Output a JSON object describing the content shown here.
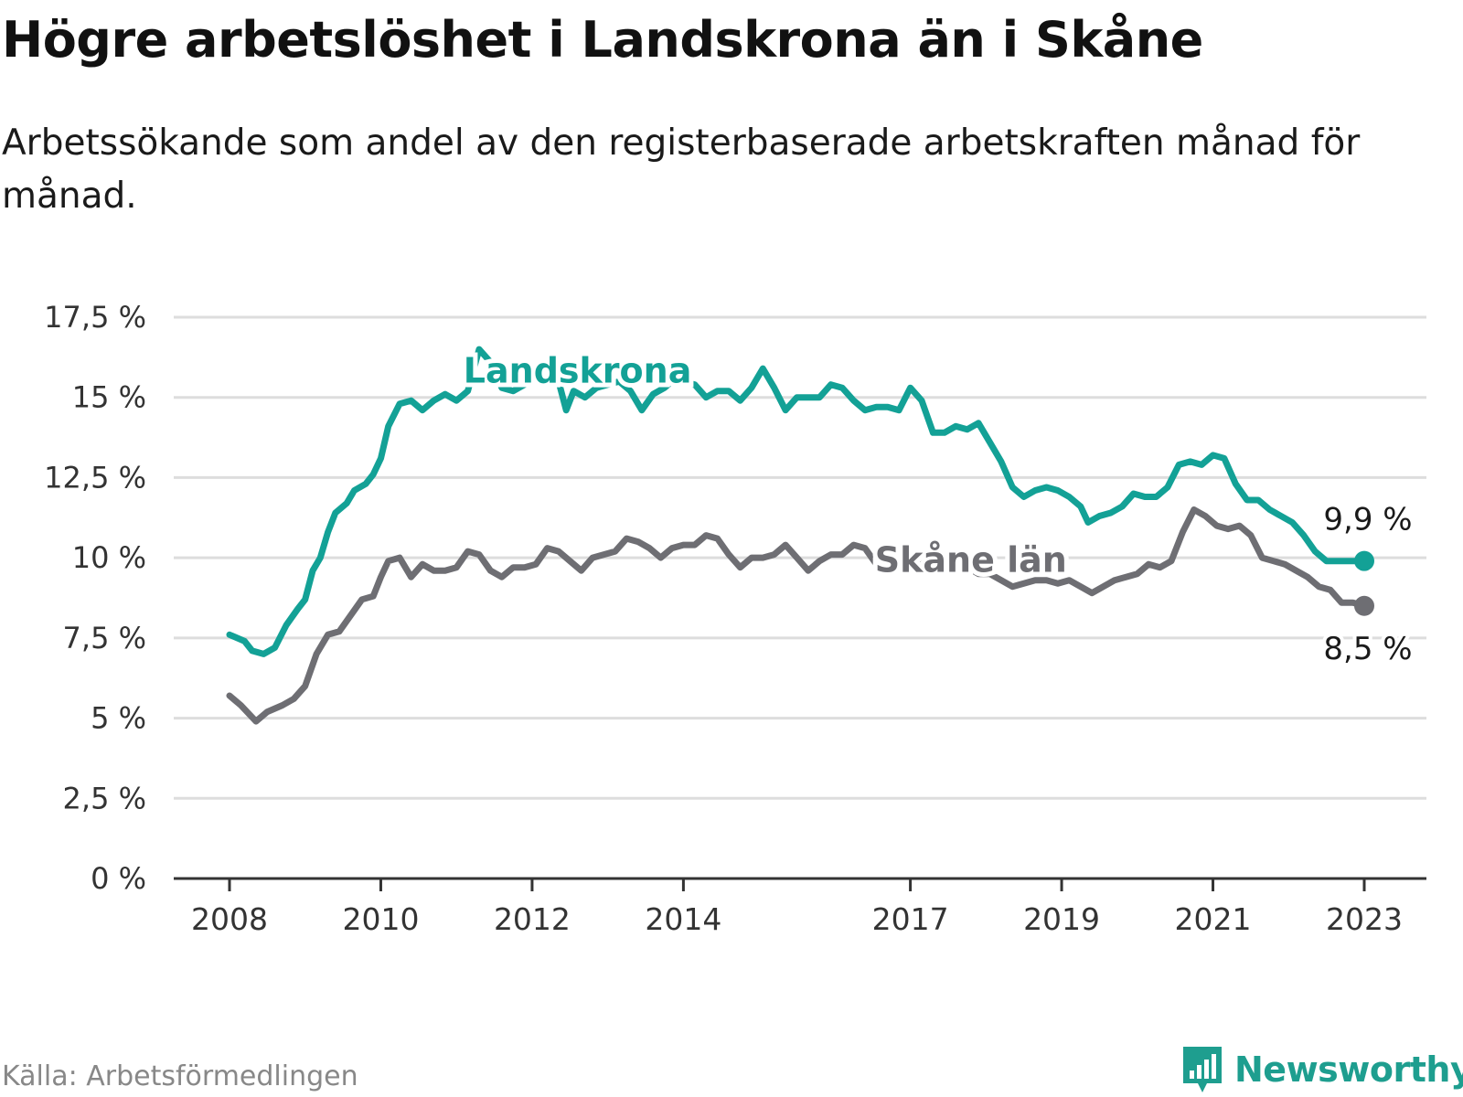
{
  "title": "Högre arbetslöshet i Landskrona än i Skåne",
  "subtitle": "Arbetssökande som andel av den registerbaserade arbetskraften månad för månad.",
  "source": "Källa: Arbetsförmedlingen",
  "brand": "Newsworthy",
  "colors": {
    "landskrona": "#13a196",
    "skane": "#6e6e73",
    "grid": "#dddddd",
    "axis": "#333333",
    "brand": "#1e9e8f"
  },
  "chart_data": {
    "type": "line",
    "title": "Högre arbetslöshet i Landskrona än i Skåne",
    "xlabel": "",
    "ylabel": "",
    "ylim": [
      0,
      17.5
    ],
    "xlim": [
      2008.0,
      2023.0
    ],
    "yticks": [
      0,
      2.5,
      5,
      7.5,
      10,
      12.5,
      15,
      17.5
    ],
    "ytick_labels": [
      "0 %",
      "2,5 %",
      "5 %",
      "7,5 %",
      "10 %",
      "12,5 %",
      "15 %",
      "17,5 %"
    ],
    "xticks": [
      2008.0,
      2010.0,
      2012.0,
      2014.0,
      2017.0,
      2019.0,
      2021.0,
      2023.0
    ],
    "xtick_labels": [
      "2008",
      "2010",
      "2012",
      "2014",
      "2017",
      "2019",
      "2021",
      "2023"
    ],
    "grid": true,
    "series": [
      {
        "name": "Landskrona",
        "label": "Landskrona",
        "end_label": "9,9 %",
        "end_value": 9.9,
        "points": [
          [
            2008.0,
            7.6
          ],
          [
            2008.2,
            7.4
          ],
          [
            2008.3,
            7.1
          ],
          [
            2008.45,
            7.0
          ],
          [
            2008.6,
            7.2
          ],
          [
            2008.75,
            7.9
          ],
          [
            2008.9,
            8.4
          ],
          [
            2009.0,
            8.7
          ],
          [
            2009.1,
            9.6
          ],
          [
            2009.2,
            10.0
          ],
          [
            2009.3,
            10.8
          ],
          [
            2009.4,
            11.4
          ],
          [
            2009.55,
            11.7
          ],
          [
            2009.65,
            12.1
          ],
          [
            2009.8,
            12.3
          ],
          [
            2009.9,
            12.6
          ],
          [
            2010.0,
            13.1
          ],
          [
            2010.1,
            14.1
          ],
          [
            2010.25,
            14.8
          ],
          [
            2010.4,
            14.9
          ],
          [
            2010.55,
            14.6
          ],
          [
            2010.7,
            14.9
          ],
          [
            2010.85,
            15.1
          ],
          [
            2011.0,
            14.9
          ],
          [
            2011.15,
            15.2
          ],
          [
            2011.3,
            16.5
          ],
          [
            2011.45,
            16.1
          ],
          [
            2011.6,
            15.3
          ],
          [
            2011.75,
            15.2
          ],
          [
            2011.9,
            15.4
          ],
          [
            2012.05,
            15.6
          ],
          [
            2012.2,
            15.8
          ],
          [
            2012.35,
            15.5
          ],
          [
            2012.45,
            14.6
          ],
          [
            2012.55,
            15.2
          ],
          [
            2012.7,
            15.0
          ],
          [
            2012.85,
            15.3
          ],
          [
            2013.0,
            15.4
          ],
          [
            2013.15,
            15.5
          ],
          [
            2013.3,
            15.2
          ],
          [
            2013.45,
            14.6
          ],
          [
            2013.6,
            15.1
          ],
          [
            2013.75,
            15.3
          ],
          [
            2013.9,
            15.6
          ],
          [
            2014.0,
            15.5
          ],
          [
            2014.15,
            15.4
          ],
          [
            2014.3,
            15.0
          ],
          [
            2014.45,
            15.2
          ],
          [
            2014.6,
            15.2
          ],
          [
            2014.75,
            14.9
          ],
          [
            2014.9,
            15.3
          ],
          [
            2015.05,
            15.9
          ],
          [
            2015.2,
            15.3
          ],
          [
            2015.35,
            14.6
          ],
          [
            2015.5,
            15.0
          ],
          [
            2015.65,
            15.0
          ],
          [
            2015.8,
            15.0
          ],
          [
            2015.95,
            15.4
          ],
          [
            2016.1,
            15.3
          ],
          [
            2016.25,
            14.9
          ],
          [
            2016.4,
            14.6
          ],
          [
            2016.55,
            14.7
          ],
          [
            2016.7,
            14.7
          ],
          [
            2016.85,
            14.6
          ],
          [
            2017.0,
            15.3
          ],
          [
            2017.15,
            14.9
          ],
          [
            2017.3,
            13.9
          ],
          [
            2017.45,
            13.9
          ],
          [
            2017.6,
            14.1
          ],
          [
            2017.75,
            14.0
          ],
          [
            2017.9,
            14.2
          ],
          [
            2018.05,
            13.6
          ],
          [
            2018.2,
            13.0
          ],
          [
            2018.35,
            12.2
          ],
          [
            2018.5,
            11.9
          ],
          [
            2018.65,
            12.1
          ],
          [
            2018.8,
            12.2
          ],
          [
            2018.95,
            12.1
          ],
          [
            2019.1,
            11.9
          ],
          [
            2019.25,
            11.6
          ],
          [
            2019.35,
            11.1
          ],
          [
            2019.5,
            11.3
          ],
          [
            2019.65,
            11.4
          ],
          [
            2019.8,
            11.6
          ],
          [
            2019.95,
            12.0
          ],
          [
            2020.1,
            11.9
          ],
          [
            2020.25,
            11.9
          ],
          [
            2020.4,
            12.2
          ],
          [
            2020.55,
            12.9
          ],
          [
            2020.7,
            13.0
          ],
          [
            2020.85,
            12.9
          ],
          [
            2021.0,
            13.2
          ],
          [
            2021.15,
            13.1
          ],
          [
            2021.3,
            12.3
          ],
          [
            2021.45,
            11.8
          ],
          [
            2021.6,
            11.8
          ],
          [
            2021.75,
            11.5
          ],
          [
            2021.9,
            11.3
          ],
          [
            2022.05,
            11.1
          ],
          [
            2022.2,
            10.7
          ],
          [
            2022.35,
            10.2
          ],
          [
            2022.5,
            9.9
          ],
          [
            2022.65,
            9.9
          ],
          [
            2022.8,
            9.9
          ],
          [
            2023.0,
            9.9
          ]
        ]
      },
      {
        "name": "Skåne län",
        "label": "Skåne län",
        "end_label": "8,5 %",
        "end_value": 8.5,
        "points": [
          [
            2008.0,
            5.7
          ],
          [
            2008.15,
            5.4
          ],
          [
            2008.35,
            4.9
          ],
          [
            2008.5,
            5.2
          ],
          [
            2008.7,
            5.4
          ],
          [
            2008.85,
            5.6
          ],
          [
            2009.0,
            6.0
          ],
          [
            2009.15,
            7.0
          ],
          [
            2009.3,
            7.6
          ],
          [
            2009.45,
            7.7
          ],
          [
            2009.6,
            8.2
          ],
          [
            2009.75,
            8.7
          ],
          [
            2009.9,
            8.8
          ],
          [
            2010.0,
            9.4
          ],
          [
            2010.1,
            9.9
          ],
          [
            2010.25,
            10.0
          ],
          [
            2010.4,
            9.4
          ],
          [
            2010.55,
            9.8
          ],
          [
            2010.7,
            9.6
          ],
          [
            2010.85,
            9.6
          ],
          [
            2011.0,
            9.7
          ],
          [
            2011.15,
            10.2
          ],
          [
            2011.3,
            10.1
          ],
          [
            2011.45,
            9.6
          ],
          [
            2011.6,
            9.4
          ],
          [
            2011.75,
            9.7
          ],
          [
            2011.9,
            9.7
          ],
          [
            2012.05,
            9.8
          ],
          [
            2012.2,
            10.3
          ],
          [
            2012.35,
            10.2
          ],
          [
            2012.5,
            9.9
          ],
          [
            2012.65,
            9.6
          ],
          [
            2012.8,
            10.0
          ],
          [
            2012.95,
            10.1
          ],
          [
            2013.1,
            10.2
          ],
          [
            2013.25,
            10.6
          ],
          [
            2013.4,
            10.5
          ],
          [
            2013.55,
            10.3
          ],
          [
            2013.7,
            10.0
          ],
          [
            2013.85,
            10.3
          ],
          [
            2014.0,
            10.4
          ],
          [
            2014.15,
            10.4
          ],
          [
            2014.3,
            10.7
          ],
          [
            2014.45,
            10.6
          ],
          [
            2014.6,
            10.1
          ],
          [
            2014.75,
            9.7
          ],
          [
            2014.9,
            10.0
          ],
          [
            2015.05,
            10.0
          ],
          [
            2015.2,
            10.1
          ],
          [
            2015.35,
            10.4
          ],
          [
            2015.5,
            10.0
          ],
          [
            2015.65,
            9.6
          ],
          [
            2015.8,
            9.9
          ],
          [
            2015.95,
            10.1
          ],
          [
            2016.1,
            10.1
          ],
          [
            2016.25,
            10.4
          ],
          [
            2016.4,
            10.3
          ],
          [
            2016.55,
            9.8
          ],
          [
            2016.7,
            9.7
          ],
          [
            2016.85,
            9.7
          ],
          [
            2017.0,
            9.8
          ],
          [
            2017.15,
            10.0
          ],
          [
            2017.3,
            10.0
          ],
          [
            2017.45,
            9.9
          ],
          [
            2017.6,
            9.8
          ],
          [
            2017.75,
            9.7
          ],
          [
            2017.9,
            9.5
          ],
          [
            2018.05,
            9.5
          ],
          [
            2018.2,
            9.3
          ],
          [
            2018.35,
            9.1
          ],
          [
            2018.5,
            9.2
          ],
          [
            2018.65,
            9.3
          ],
          [
            2018.8,
            9.3
          ],
          [
            2018.95,
            9.2
          ],
          [
            2019.1,
            9.3
          ],
          [
            2019.25,
            9.1
          ],
          [
            2019.4,
            8.9
          ],
          [
            2019.55,
            9.1
          ],
          [
            2019.7,
            9.3
          ],
          [
            2019.85,
            9.4
          ],
          [
            2020.0,
            9.5
          ],
          [
            2020.15,
            9.8
          ],
          [
            2020.3,
            9.7
          ],
          [
            2020.45,
            9.9
          ],
          [
            2020.6,
            10.8
          ],
          [
            2020.75,
            11.5
          ],
          [
            2020.9,
            11.3
          ],
          [
            2021.05,
            11.0
          ],
          [
            2021.2,
            10.9
          ],
          [
            2021.35,
            11.0
          ],
          [
            2021.5,
            10.7
          ],
          [
            2021.65,
            10.0
          ],
          [
            2021.8,
            9.9
          ],
          [
            2021.95,
            9.8
          ],
          [
            2022.1,
            9.6
          ],
          [
            2022.25,
            9.4
          ],
          [
            2022.4,
            9.1
          ],
          [
            2022.55,
            9.0
          ],
          [
            2022.7,
            8.6
          ],
          [
            2022.85,
            8.6
          ],
          [
            2023.0,
            8.5
          ]
        ]
      }
    ]
  }
}
